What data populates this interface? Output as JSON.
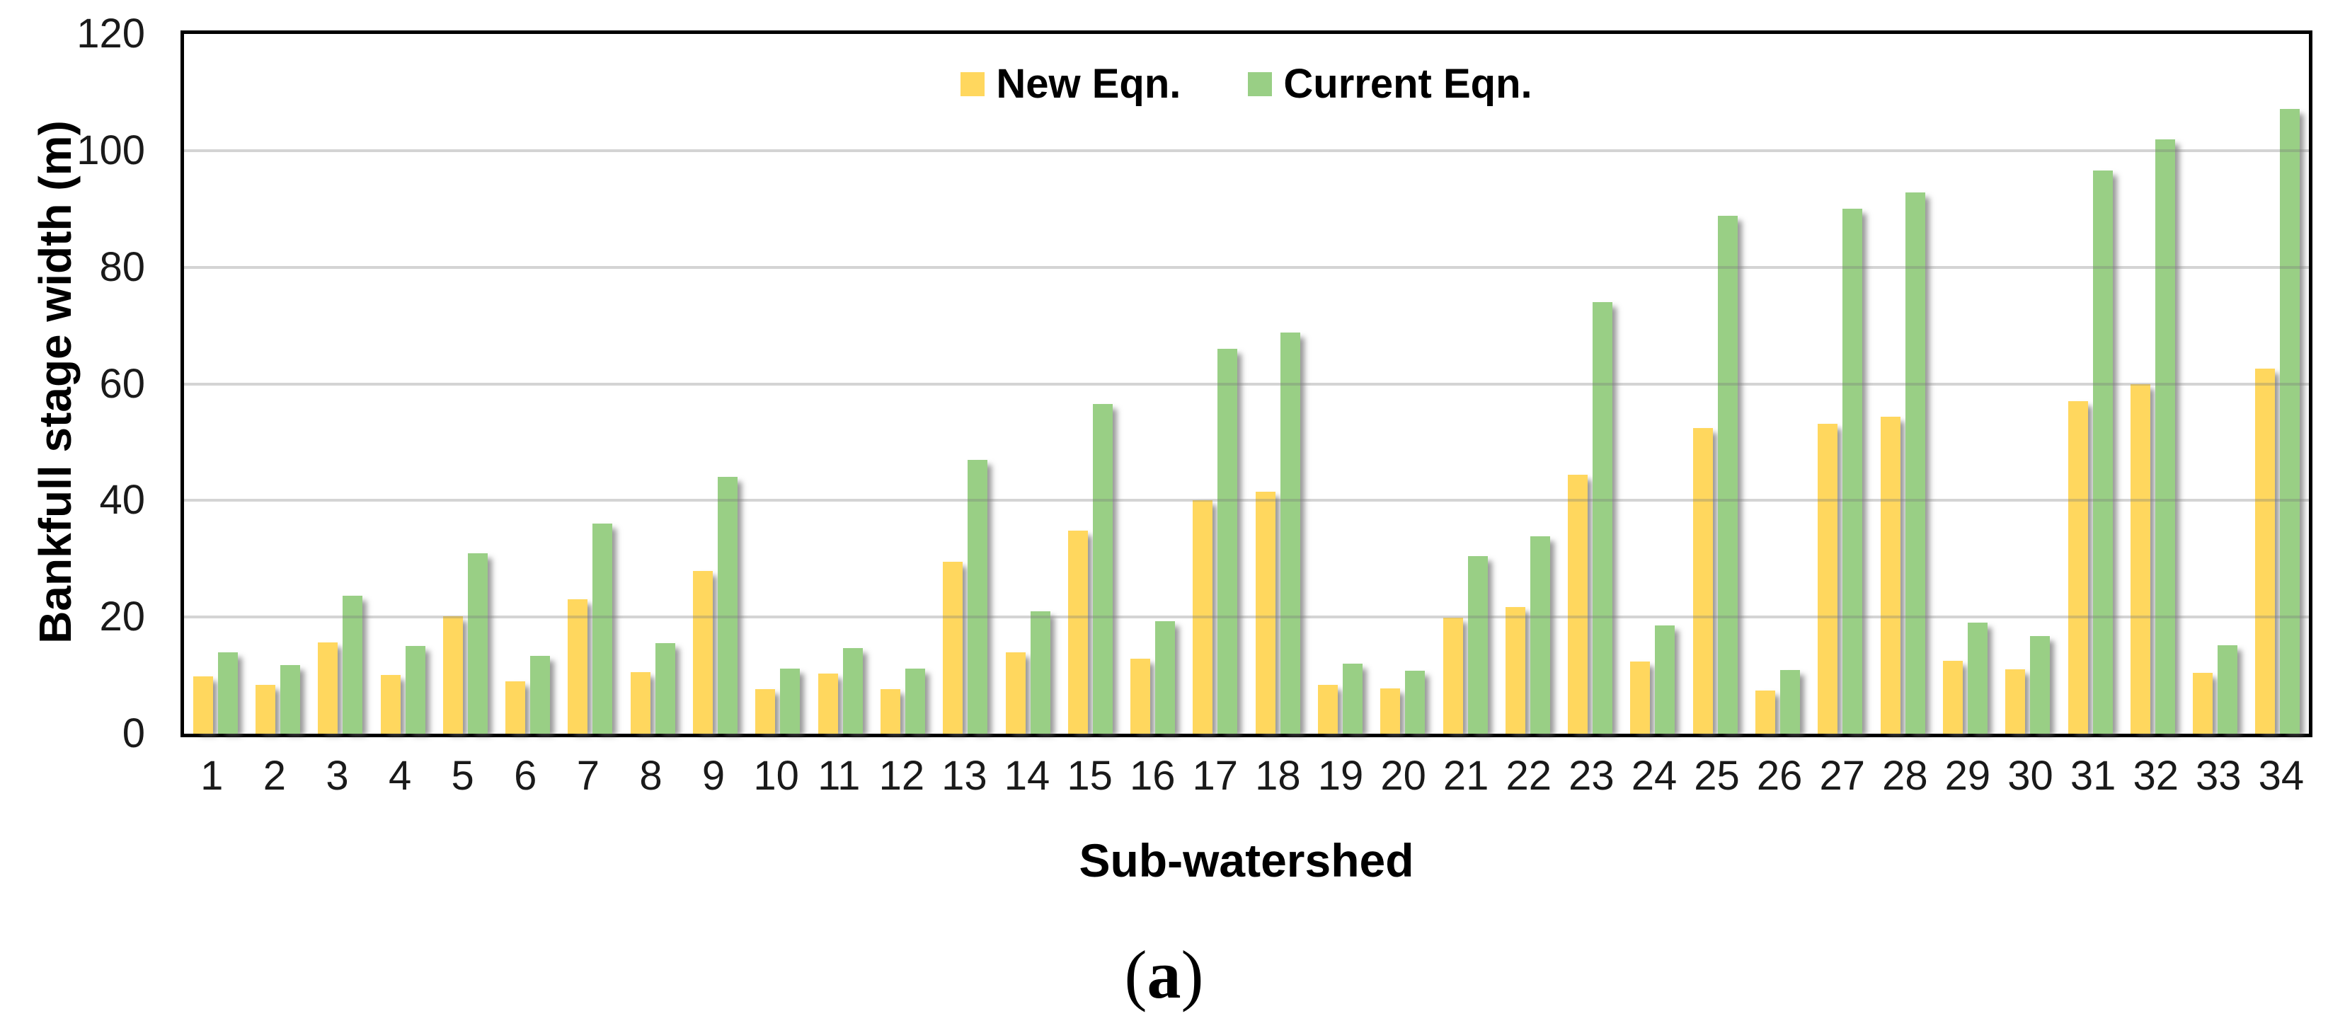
{
  "chart_data": {
    "type": "bar",
    "title": "",
    "xlabel": "Sub-watershed",
    "ylabel": "Bankfull stage width (m)",
    "ylim": [
      0,
      120
    ],
    "ytick_step": 20,
    "yticks": [
      "0",
      "20",
      "40",
      "60",
      "80",
      "100",
      "120"
    ],
    "grid": "horizontal",
    "legend_position": "top-center",
    "categories": [
      "1",
      "2",
      "3",
      "4",
      "5",
      "6",
      "7",
      "8",
      "9",
      "10",
      "11",
      "12",
      "13",
      "14",
      "15",
      "16",
      "17",
      "18",
      "19",
      "20",
      "21",
      "22",
      "23",
      "24",
      "25",
      "26",
      "27",
      "28",
      "29",
      "30",
      "31",
      "32",
      "33",
      "34"
    ],
    "series": [
      {
        "name": "New Eqn.",
        "color": "#FFD75E",
        "values": [
          9.8,
          8.4,
          15.7,
          10.1,
          20.1,
          9.0,
          23.0,
          10.5,
          27.9,
          7.6,
          10.3,
          7.7,
          29.5,
          14.0,
          34.8,
          12.9,
          40.0,
          41.5,
          8.4,
          7.8,
          19.9,
          21.7,
          44.4,
          12.4,
          52.4,
          7.4,
          53.2,
          54.3,
          12.5,
          11.1,
          57.0,
          59.9,
          10.4,
          62.6
        ]
      },
      {
        "name": "Current Eqn.",
        "color": "#99CF85",
        "values": [
          14.0,
          11.8,
          23.7,
          15.0,
          31.0,
          13.3,
          36.0,
          15.5,
          44.0,
          11.2,
          14.7,
          11.2,
          47.0,
          21.0,
          56.5,
          19.3,
          66.0,
          68.8,
          12.0,
          10.8,
          30.5,
          33.9,
          74.0,
          18.6,
          88.8,
          10.9,
          90.0,
          92.8,
          19.0,
          16.8,
          96.6,
          101.9,
          15.2,
          107.2
        ]
      }
    ]
  },
  "caption": {
    "open": "(",
    "letter": "a",
    "close": ")"
  },
  "colors": {
    "axis_border": "#000000",
    "gridline": "#d2d2d2",
    "background": "#ffffff",
    "tick_text": "#1a1a1a"
  }
}
